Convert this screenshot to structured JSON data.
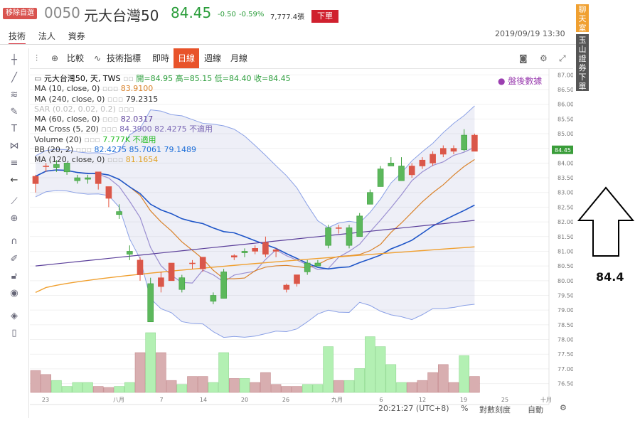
{
  "header": {
    "badge": "移除自選",
    "code": "0050",
    "name": "元大台灣50",
    "price": "84.45",
    "change": "-0.50",
    "change_pct": "-0.59%",
    "volume": "7,777.4張",
    "order_button": "下單",
    "tabs": [
      "技術",
      "法人",
      "資券"
    ],
    "datetime": "2019/09/19 13:30"
  },
  "side_buttons": {
    "chat": "聊天室",
    "broker_order": "玉山證券下單"
  },
  "toolbar": {
    "compare": "比較",
    "indicators": "技術指標",
    "intraday": "即時",
    "daily": "日線",
    "weekly": "週線",
    "monthly": "月線"
  },
  "legend": {
    "title": "元大台灣50, 天, TWS",
    "ohlc": "開=84.95  高=85.15  低=84.40  收=84.45",
    "lines": [
      {
        "label": "MA (10, close, 0)",
        "value": "83.9100",
        "color": "#d9822b"
      },
      {
        "label": "MA (240, close, 0)",
        "value": "79.2315",
        "color": "#333333"
      },
      {
        "label": "SAR (0.02, 0.02, 0.2)",
        "value": "",
        "color": "#bbbbbb"
      },
      {
        "label": "MA (60, close, 0)",
        "value": "82.0317",
        "color": "#5b3f9a"
      },
      {
        "label": "MA Cross (5, 20)",
        "value": "84.3900  82.4275  不適用",
        "color": "#7b68b5"
      },
      {
        "label": "Volume (20)",
        "value": "7.777K  不適用",
        "color": "#22bb22"
      },
      {
        "label": "BB (20, 2)",
        "value": "82.4275  85.7061  79.1489",
        "color": "#1e6fd9"
      },
      {
        "label": "MA (120, close, 0)",
        "value": "81.1654",
        "color": "#e0a020"
      }
    ],
    "after_hours": "盤後數據"
  },
  "chart_data": {
    "type": "candlestick",
    "y_ticks": [
      "87.00",
      "86.50",
      "86.00",
      "85.50",
      "85.00",
      "84.50",
      "84.00",
      "83.50",
      "83.00",
      "82.50",
      "82.00",
      "81.50",
      "81.00",
      "80.50",
      "80.00",
      "79.50",
      "79.00",
      "78.50",
      "78.00",
      "77.50",
      "77.00",
      "76.50"
    ],
    "ylim": [
      76.2,
      87.2
    ],
    "current_price_label": "84.45",
    "x_labels": [
      "23",
      "八月",
      "7",
      "14",
      "20",
      "26",
      "九月",
      "6",
      "12",
      "19",
      "25",
      "十月"
    ],
    "candles": [
      {
        "o": 83.3,
        "h": 83.6,
        "l": 83.0,
        "c": 83.55
      },
      {
        "o": 83.9,
        "h": 84.0,
        "l": 83.7,
        "c": 83.9
      },
      {
        "o": 83.95,
        "h": 84.1,
        "l": 83.7,
        "c": 83.85
      },
      {
        "o": 84.0,
        "h": 84.0,
        "l": 83.6,
        "c": 83.7
      },
      {
        "o": 83.5,
        "h": 83.6,
        "l": 83.3,
        "c": 83.4
      },
      {
        "o": 83.5,
        "h": 83.6,
        "l": 83.3,
        "c": 83.45
      },
      {
        "o": 83.3,
        "h": 83.7,
        "l": 83.1,
        "c": 83.7
      },
      {
        "o": 82.8,
        "h": 83.2,
        "l": 82.5,
        "c": 83.2
      },
      {
        "o": 82.35,
        "h": 82.6,
        "l": 82.1,
        "c": 82.25
      },
      {
        "o": 81.0,
        "h": 81.2,
        "l": 80.7,
        "c": 80.9
      },
      {
        "o": 80.2,
        "h": 80.8,
        "l": 80.0,
        "c": 80.7
      },
      {
        "o": 79.9,
        "h": 80.1,
        "l": 78.6,
        "c": 78.6
      },
      {
        "o": 79.8,
        "h": 80.3,
        "l": 79.6,
        "c": 80.1
      },
      {
        "o": 80.0,
        "h": 80.6,
        "l": 80.0,
        "c": 80.6
      },
      {
        "o": 80.1,
        "h": 80.2,
        "l": 79.6,
        "c": 79.7
      },
      {
        "o": 80.6,
        "h": 80.7,
        "l": 80.4,
        "c": 80.6
      },
      {
        "o": 80.4,
        "h": 80.8,
        "l": 80.3,
        "c": 80.8
      },
      {
        "o": 79.5,
        "h": 79.6,
        "l": 79.2,
        "c": 79.3
      },
      {
        "o": 80.3,
        "h": 80.4,
        "l": 79.4,
        "c": 79.4
      },
      {
        "o": 80.8,
        "h": 80.9,
        "l": 80.7,
        "c": 80.85
      },
      {
        "o": 81.0,
        "h": 81.1,
        "l": 80.8,
        "c": 80.95
      },
      {
        "o": 81.0,
        "h": 81.2,
        "l": 80.9,
        "c": 81.1
      },
      {
        "o": 80.9,
        "h": 81.5,
        "l": 80.8,
        "c": 81.3
      },
      {
        "o": 81.0,
        "h": 81.1,
        "l": 80.8,
        "c": 81.05
      },
      {
        "o": 79.7,
        "h": 79.9,
        "l": 79.6,
        "c": 79.85
      },
      {
        "o": 79.9,
        "h": 80.2,
        "l": 79.8,
        "c": 80.2
      },
      {
        "o": 80.6,
        "h": 80.7,
        "l": 80.2,
        "c": 80.3
      },
      {
        "o": 80.6,
        "h": 80.7,
        "l": 80.5,
        "c": 80.5
      },
      {
        "o": 81.8,
        "h": 81.9,
        "l": 81.1,
        "c": 81.2
      },
      {
        "o": 81.8,
        "h": 81.9,
        "l": 81.6,
        "c": 81.8
      },
      {
        "o": 81.8,
        "h": 81.9,
        "l": 81.1,
        "c": 81.2
      },
      {
        "o": 82.2,
        "h": 82.3,
        "l": 81.5,
        "c": 81.5
      },
      {
        "o": 83.0,
        "h": 83.1,
        "l": 82.6,
        "c": 82.6
      },
      {
        "o": 83.8,
        "h": 83.9,
        "l": 83.2,
        "c": 83.2
      },
      {
        "o": 84.0,
        "h": 84.2,
        "l": 83.9,
        "c": 83.9
      },
      {
        "o": 83.9,
        "h": 84.2,
        "l": 83.4,
        "c": 83.4
      },
      {
        "o": 83.6,
        "h": 84.0,
        "l": 83.5,
        "c": 83.9
      },
      {
        "o": 83.9,
        "h": 84.2,
        "l": 83.8,
        "c": 84.1
      },
      {
        "o": 84.0,
        "h": 84.4,
        "l": 83.9,
        "c": 84.3
      },
      {
        "o": 84.3,
        "h": 84.6,
        "l": 84.2,
        "c": 84.5
      },
      {
        "o": 84.4,
        "h": 84.6,
        "l": 84.3,
        "c": 84.5
      },
      {
        "o": 84.95,
        "h": 85.15,
        "l": 84.4,
        "c": 84.45
      },
      {
        "o": 84.4,
        "h": 85.0,
        "l": 84.4,
        "c": 84.95
      }
    ],
    "volumes_relative": [
      0.22,
      0.18,
      0.12,
      0.06,
      0.1,
      0.1,
      0.06,
      0.05,
      0.06,
      0.1,
      0.4,
      0.6,
      0.4,
      0.12,
      0.08,
      0.16,
      0.16,
      0.1,
      0.4,
      0.14,
      0.14,
      0.1,
      0.2,
      0.08,
      0.06,
      0.06,
      0.08,
      0.08,
      0.46,
      0.12,
      0.12,
      0.24,
      0.56,
      0.46,
      0.28,
      0.1,
      0.1,
      0.12,
      0.2,
      0.28,
      0.1,
      0.37,
      0.16
    ]
  },
  "bottom": {
    "time": "20:21:27 (UTC+8)",
    "percent": "%",
    "log": "對數刻度",
    "auto": "自動"
  },
  "annotation": {
    "value": "84.4"
  }
}
